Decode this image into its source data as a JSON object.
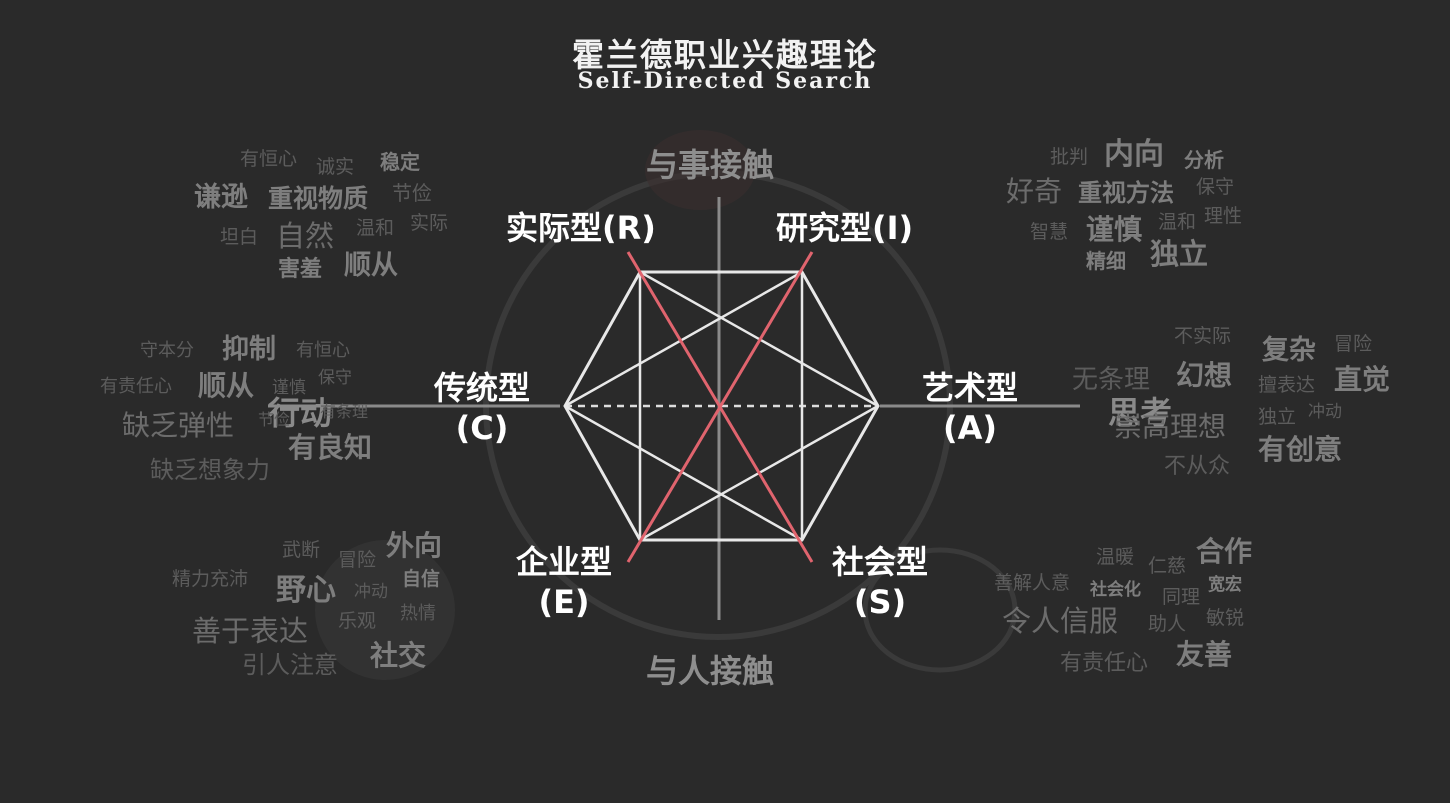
{
  "title": "霍兰德职业兴趣理论",
  "subtitle": "Self-Directed Search",
  "axis": {
    "top": "与事接触",
    "bottom": "与人接触",
    "left": "行动",
    "right": "思考"
  },
  "types": {
    "R": {
      "name": "实际型(R)"
    },
    "I": {
      "name": "研究型(I)"
    },
    "A": {
      "name": "艺术型",
      "code": "(A)"
    },
    "S": {
      "name": "社会型",
      "code": "(S)"
    },
    "E": {
      "name": "企业型",
      "code": "(E)"
    },
    "C": {
      "name": "传统型",
      "code": "(C)"
    }
  },
  "traits": {
    "R": [
      "有恒心",
      "诚实",
      "稳定",
      "谦逊",
      "重视物质",
      "节俭",
      "坦白",
      "自然",
      "温和",
      "实际",
      "害羞",
      "顺从"
    ],
    "I": [
      "批判",
      "内向",
      "分析",
      "好奇",
      "重视方法",
      "保守",
      "智慧",
      "谨慎",
      "温和",
      "理性",
      "精细",
      "独立"
    ],
    "C": [
      "守本分",
      "抑制",
      "有恒心",
      "有责任心",
      "顺从",
      "谨慎",
      "保守",
      "缺乏弹性",
      "节俭",
      "有条理",
      "有良知",
      "缺乏想象力"
    ],
    "A": [
      "不实际",
      "复杂",
      "冒险",
      "无条理",
      "幻想",
      "擅表达",
      "直觉",
      "独立",
      "冲动",
      "崇高理想",
      "有创意",
      "不从众"
    ],
    "E": [
      "武断",
      "冒险",
      "外向",
      "精力充沛",
      "野心",
      "冲动",
      "自信",
      "热情",
      "善于表达",
      "乐观",
      "引人注意",
      "社交"
    ],
    "S": [
      "温暖",
      "仁慈",
      "合作",
      "善解人意",
      "社会化",
      "宽宏",
      "同理",
      "令人信服",
      "助人",
      "敏锐",
      "有责任心",
      "友善"
    ]
  },
  "colors": {
    "background": "#2a2a2a",
    "hexagon": "#e8e8e8",
    "diagonal": "#e0646e",
    "axis": "#8a8a8a"
  }
}
